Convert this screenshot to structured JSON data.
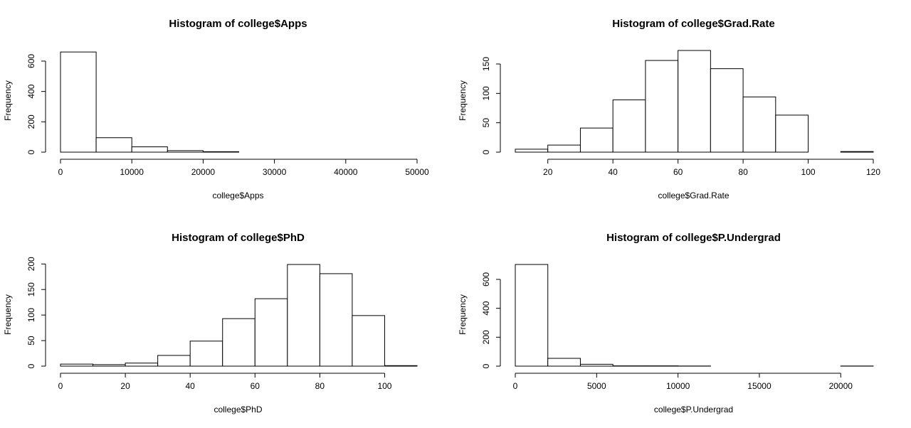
{
  "chart_data": [
    {
      "type": "histogram",
      "title": "Histogram of college$Apps",
      "xlabel": "college$Apps",
      "ylabel": "Frequency",
      "bins": [
        0,
        5000,
        10000,
        15000,
        20000,
        25000,
        30000,
        35000,
        40000,
        45000,
        50000
      ],
      "values": [
        660,
        95,
        35,
        10,
        3,
        0,
        0,
        0,
        0,
        0,
        2
      ],
      "xlim": [
        0,
        50000
      ],
      "ylim": [
        0,
        670
      ],
      "xticks": [
        0,
        10000,
        20000,
        30000,
        40000,
        50000
      ],
      "yticks": [
        0,
        200,
        400,
        600
      ],
      "color": "#ffffff"
    },
    {
      "type": "histogram",
      "title": "Histogram of college$Grad.Rate",
      "xlabel": "college$Grad.Rate",
      "ylabel": "Frequency",
      "bins": [
        10,
        20,
        30,
        40,
        50,
        60,
        70,
        80,
        90,
        100,
        110,
        120
      ],
      "values": [
        5,
        12,
        41,
        89,
        156,
        173,
        142,
        94,
        63,
        0,
        1
      ],
      "xlim": [
        10,
        120
      ],
      "ylim": [
        0,
        173
      ],
      "xticks": [
        20,
        40,
        60,
        80,
        100,
        120
      ],
      "yticks": [
        0,
        50,
        100,
        150
      ],
      "color": "#ffffff"
    },
    {
      "type": "histogram",
      "title": "Histogram of college$PhD",
      "xlabel": "college$PhD",
      "ylabel": "Frequency",
      "bins": [
        0,
        10,
        20,
        30,
        40,
        50,
        60,
        70,
        80,
        90,
        100,
        110
      ],
      "values": [
        4,
        3,
        6,
        21,
        49,
        93,
        132,
        199,
        181,
        99,
        1
      ],
      "xlim": [
        0,
        110
      ],
      "ylim": [
        0,
        199
      ],
      "xticks": [
        0,
        20,
        40,
        60,
        80,
        100
      ],
      "yticks": [
        0,
        50,
        100,
        150,
        200
      ],
      "color": "#ffffff"
    },
    {
      "type": "histogram",
      "title": "Histogram of college$P.Undergrad",
      "xlabel": "college$P.Undergrad",
      "ylabel": "Frequency",
      "bins": [
        0,
        2000,
        4000,
        6000,
        8000,
        10000,
        12000,
        14000,
        16000,
        18000,
        20000,
        22000
      ],
      "values": [
        703,
        54,
        13,
        2,
        2,
        1,
        0,
        0,
        0,
        0,
        1
      ],
      "xlim": [
        0,
        22000
      ],
      "ylim": [
        0,
        703
      ],
      "xticks": [
        0,
        5000,
        10000,
        15000,
        20000
      ],
      "yticks": [
        0,
        200,
        400,
        600
      ],
      "color": "#ffffff"
    }
  ]
}
